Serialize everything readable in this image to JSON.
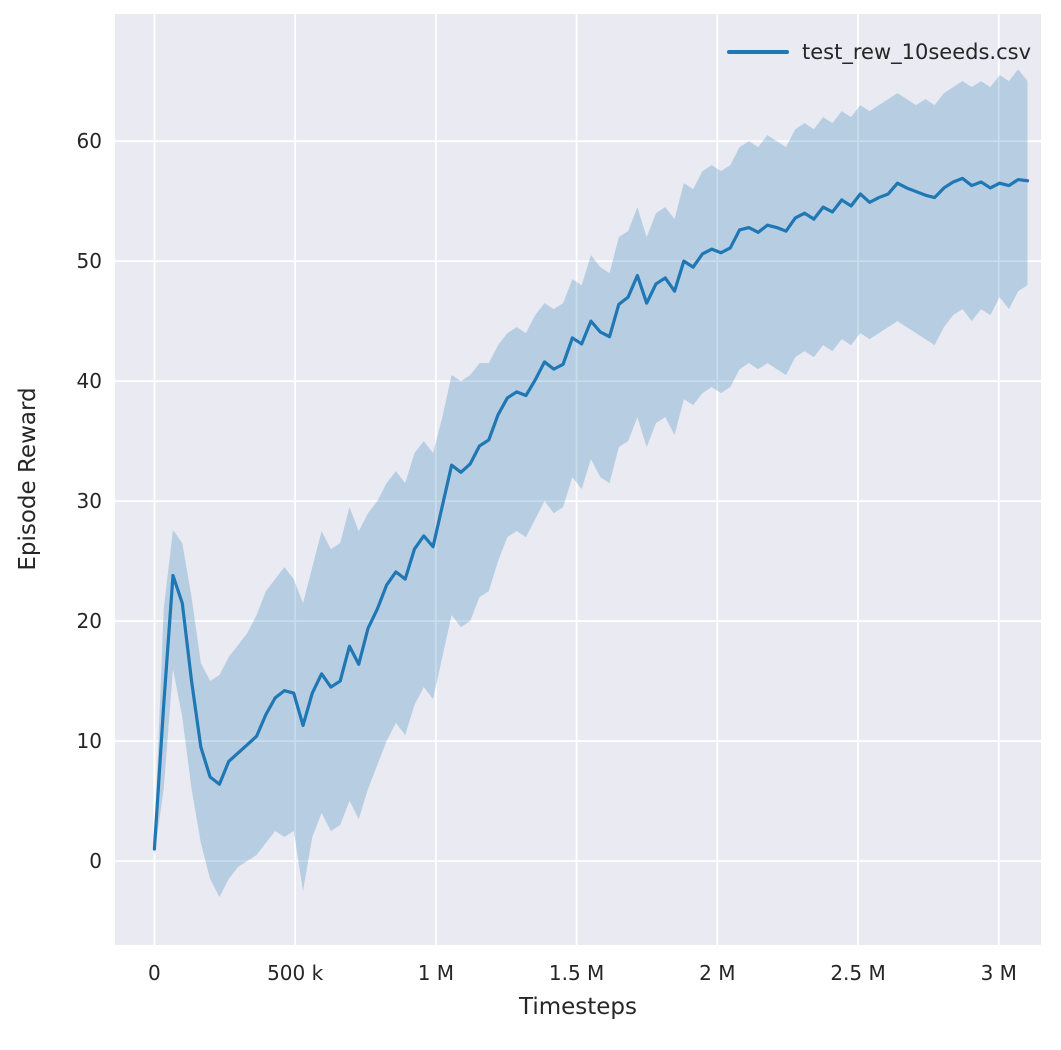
{
  "chart_data": {
    "type": "line",
    "title": "",
    "xlabel": "Timesteps",
    "ylabel": "Episode Reward",
    "legend": "test_rew_10seeds.csv",
    "legend_position": "upper right",
    "grid": true,
    "x_unit": "timesteps (thousands)",
    "xlim": [
      -140,
      3150
    ],
    "ylim": [
      -7,
      70.6
    ],
    "xticks": {
      "values": [
        0,
        500,
        1000,
        1500,
        2000,
        2500,
        3000
      ],
      "labels": [
        "0",
        "500 k",
        "1 M",
        "1.5 M",
        "2 M",
        "2.5 M",
        "3 M"
      ]
    },
    "yticks": {
      "values": [
        0,
        10,
        20,
        30,
        40,
        50,
        60
      ],
      "labels": [
        "0",
        "10",
        "20",
        "30",
        "40",
        "50",
        "60"
      ]
    },
    "colors": {
      "line": "#1f77b4",
      "band_opacity": 0.25,
      "plot_bg": "#eaeaf2",
      "grid": "#ffffff",
      "tick_text": "#262626"
    },
    "series": [
      {
        "name": "test_rew_10seeds.csv",
        "x": [
          0,
          33,
          66,
          99,
          132,
          165,
          198,
          231,
          264,
          297,
          330,
          363,
          396,
          429,
          462,
          495,
          528,
          561,
          594,
          627,
          660,
          693,
          726,
          759,
          792,
          825,
          858,
          891,
          924,
          957,
          990,
          1023,
          1056,
          1089,
          1122,
          1155,
          1188,
          1221,
          1254,
          1287,
          1320,
          1353,
          1386,
          1419,
          1452,
          1485,
          1518,
          1551,
          1584,
          1617,
          1650,
          1683,
          1716,
          1749,
          1782,
          1815,
          1848,
          1881,
          1914,
          1947,
          1980,
          2013,
          2046,
          2079,
          2112,
          2145,
          2178,
          2211,
          2244,
          2277,
          2310,
          2343,
          2376,
          2409,
          2442,
          2475,
          2508,
          2541,
          2574,
          2607,
          2640,
          2673,
          2706,
          2739,
          2772,
          2805,
          2838,
          2871,
          2904,
          2937,
          2970,
          3003,
          3036,
          3069,
          3102
        ],
        "mean": [
          1.0,
          13.0,
          23.8,
          21.5,
          15.0,
          9.5,
          7.0,
          6.4,
          8.3,
          9.0,
          9.7,
          10.4,
          12.2,
          13.6,
          14.2,
          14.0,
          11.3,
          14.0,
          15.6,
          14.5,
          15.0,
          17.9,
          16.4,
          19.4,
          21.0,
          23.0,
          24.1,
          23.5,
          26.0,
          27.1,
          26.2,
          29.6,
          33.0,
          32.4,
          33.1,
          34.6,
          35.1,
          37.2,
          38.6,
          39.1,
          38.8,
          40.1,
          41.6,
          41.0,
          41.4,
          43.6,
          43.1,
          45.0,
          44.1,
          43.7,
          46.4,
          47.0,
          48.8,
          46.5,
          48.1,
          48.6,
          47.5,
          50.0,
          49.5,
          50.6,
          51.0,
          50.7,
          51.1,
          52.6,
          52.8,
          52.4,
          53.0,
          52.8,
          52.5,
          53.6,
          54.0,
          53.5,
          54.5,
          54.1,
          55.1,
          54.6,
          55.6,
          54.9,
          55.3,
          55.6,
          56.5,
          56.1,
          55.8,
          55.5,
          55.3,
          56.1,
          56.6,
          56.9,
          56.3,
          56.6,
          56.1,
          56.5,
          56.3,
          56.8,
          56.7
        ],
        "lower": [
          0.5,
          6.0,
          16.0,
          12.0,
          6.0,
          1.5,
          -1.5,
          -3.0,
          -1.5,
          -0.5,
          0.0,
          0.5,
          1.5,
          2.5,
          2.0,
          2.5,
          -2.5,
          2.0,
          4.0,
          2.5,
          3.0,
          5.0,
          3.5,
          6.0,
          8.0,
          10.0,
          11.5,
          10.5,
          13.0,
          14.5,
          13.5,
          17.0,
          20.5,
          19.5,
          20.0,
          22.0,
          22.5,
          25.0,
          27.0,
          27.5,
          27.0,
          28.5,
          30.0,
          29.0,
          29.5,
          32.0,
          31.0,
          33.5,
          32.0,
          31.5,
          34.5,
          35.0,
          37.0,
          34.5,
          36.5,
          37.0,
          35.5,
          38.5,
          38.0,
          39.0,
          39.5,
          39.0,
          39.5,
          41.0,
          41.5,
          41.0,
          41.5,
          41.0,
          40.5,
          42.0,
          42.5,
          42.0,
          43.0,
          42.5,
          43.5,
          43.0,
          44.0,
          43.5,
          44.0,
          44.5,
          45.0,
          44.5,
          44.0,
          43.5,
          43.0,
          44.5,
          45.5,
          46.0,
          45.0,
          46.0,
          45.5,
          47.0,
          46.0,
          47.5,
          48.0
        ],
        "upper": [
          1.6,
          21.0,
          27.6,
          26.5,
          22.0,
          16.5,
          15.0,
          15.5,
          17.0,
          18.0,
          19.0,
          20.5,
          22.5,
          23.5,
          24.5,
          23.5,
          21.5,
          24.5,
          27.5,
          26.0,
          26.5,
          29.5,
          27.5,
          29.0,
          30.0,
          31.5,
          32.5,
          31.5,
          34.0,
          35.0,
          34.0,
          37.0,
          40.5,
          40.0,
          40.5,
          41.5,
          41.5,
          43.0,
          44.0,
          44.5,
          44.0,
          45.5,
          46.5,
          46.0,
          46.5,
          48.5,
          48.0,
          50.5,
          49.5,
          49.0,
          52.0,
          52.5,
          54.5,
          52.0,
          54.0,
          54.5,
          53.5,
          56.5,
          56.0,
          57.5,
          58.0,
          57.5,
          58.0,
          59.5,
          60.0,
          59.5,
          60.5,
          60.0,
          59.5,
          61.0,
          61.5,
          61.0,
          62.0,
          61.5,
          62.5,
          62.0,
          63.0,
          62.5,
          63.0,
          63.5,
          64.0,
          63.5,
          63.0,
          63.5,
          63.0,
          64.0,
          64.5,
          65.0,
          64.5,
          65.0,
          64.5,
          65.5,
          65.0,
          66.0,
          65.0
        ]
      }
    ]
  }
}
